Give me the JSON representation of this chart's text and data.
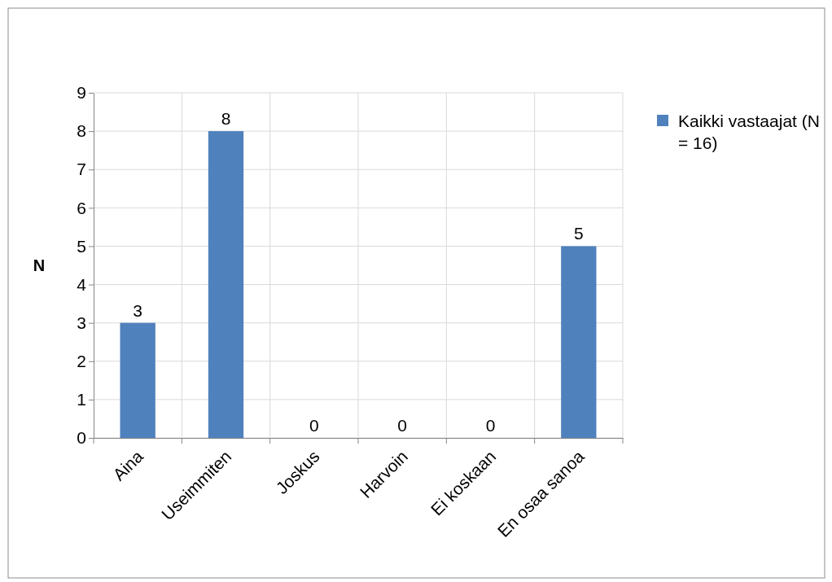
{
  "chart_data": {
    "type": "bar",
    "ylabel": "N",
    "categories": [
      "Aina",
      "Useimmiten",
      "Joskus",
      "Harvoin",
      "Ei koskaan",
      "En osaa sanoa"
    ],
    "series": [
      {
        "name": "Kaikki vastaajat (N = 16)",
        "color": "#4f81bd",
        "values": [
          3,
          8,
          0,
          0,
          0,
          5
        ]
      }
    ],
    "ylim": [
      0,
      9
    ],
    "yticks": [
      0,
      1,
      2,
      3,
      4,
      5,
      6,
      7,
      8,
      9
    ],
    "grid": true,
    "legend": "right",
    "data_labels": true
  }
}
